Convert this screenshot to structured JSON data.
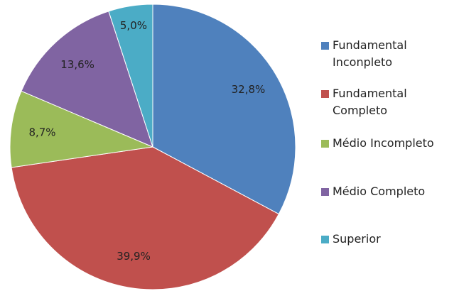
{
  "chart_data": {
    "type": "pie",
    "categories": [
      "Fundamental Inconpleto",
      "Fundamental Completo",
      "Médio Incompleto",
      "Médio Completo",
      "Superior"
    ],
    "values": [
      32.8,
      39.9,
      8.7,
      13.6,
      5.0
    ],
    "value_labels": [
      "32,8%",
      "39,9%",
      "8,7%",
      "13,6%",
      "5,0%"
    ],
    "colors": [
      "#4f81bd",
      "#c0504d",
      "#9bbb59",
      "#8064a2",
      "#4bacc6"
    ]
  }
}
